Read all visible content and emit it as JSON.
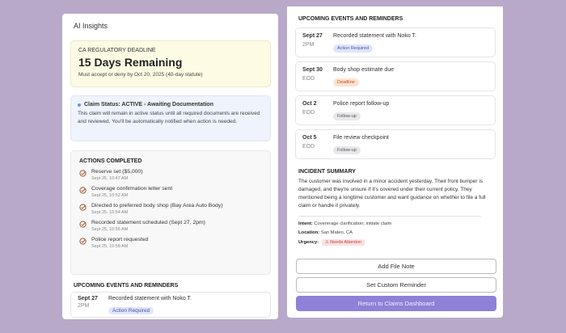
{
  "left": {
    "title": "AI Insights",
    "deadline": {
      "label": "CA REGULATORY DEADLINE",
      "headline": "15 Days Remaining",
      "detail": "Must accept or deny by Oct 20, 2025 (40-day statute)"
    },
    "status": {
      "heading": "Claim Status: ACTIVE - Awaiting Documentation",
      "text": "This claim will remain in active status until all required documents are received and reviewed. You'll be automatically notified when action is needed."
    },
    "actions": {
      "heading": "ACTIONS COMPLETED",
      "items": [
        {
          "label": "Reserve set ($5,000)",
          "time": "Sept 25, 10:47 AM"
        },
        {
          "label": "Coverage confirmation letter sent",
          "time": "Sept 25, 10:52 AM"
        },
        {
          "label": "Directed to preferred body shop (Bay Area Auto Body)",
          "time": "Sept 25, 10:54 AM"
        },
        {
          "label": "Recorded statement scheduled (Sept 27, 2pm)",
          "time": "Sept 25, 10:56 AM"
        },
        {
          "label": "Police report requested",
          "time": "Sept 25, 10:58 AM"
        }
      ]
    },
    "upcoming_heading": "UPCOMING EVENTS AND REMINDERS",
    "event": {
      "date": "Sept 27",
      "time": "2PM",
      "title": "Recorded statement with Noko T.",
      "badge": "Action Required"
    }
  },
  "right": {
    "upcoming_heading": "UPCOMING EVENTS AND REMINDERS",
    "events": [
      {
        "date": "Sept 27",
        "time": "2PM",
        "title": "Recorded statement with Noko T.",
        "badge": "Action Required"
      },
      {
        "date": "Sept 30",
        "time": "EOD",
        "title": "Body shop estimate due",
        "badge": "Deadline"
      },
      {
        "date": "Oct 2",
        "time": "EOD",
        "title": "Police report follow-up",
        "badge": "Follow-up"
      },
      {
        "date": "Oct 5",
        "time": "EOD",
        "title": "File review checkpoint",
        "badge": "Follow-up"
      }
    ],
    "incident": {
      "heading": "INCIDENT SUMMARY",
      "text": "The customer was involved in a minor accident yesterday. Their front bumper is damaged, and they're unsure if it's covered under their current policy. They mentioned being a longtime customer and want guidance on whether to file a full claim or handle it privately.",
      "intent_label": "Intent:",
      "intent": "Covererage clarification; initiate claim",
      "location_label": "Location:",
      "location": "San Mateo, CA",
      "urgency_label": "Urgency:",
      "urgency": "Needs Attention"
    },
    "buttons": {
      "add_note": "Add File Note",
      "set_reminder": "Set Custom Reminder",
      "return": "Return to Claims Dashboard"
    }
  },
  "colors": {
    "background": "#b8a9c9",
    "accent": "#8f80d8",
    "check": "#a0522d"
  }
}
